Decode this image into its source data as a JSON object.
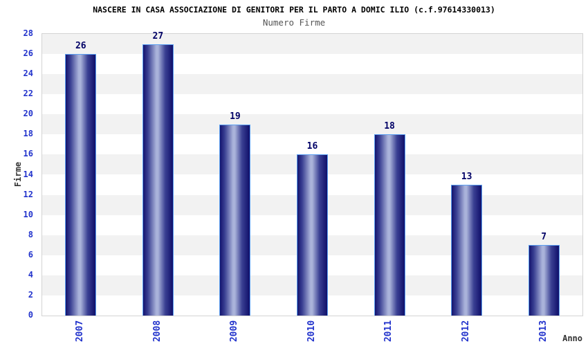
{
  "chart_data": {
    "type": "bar",
    "title": "NASCERE IN CASA ASSOCIAZIONE DI GENITORI PER IL PARTO A DOMIC ILIO (c.f.97614330013)",
    "subtitle": "Numero Firme",
    "xlabel": "Anno",
    "ylabel": "Firme",
    "categories": [
      "2007",
      "2008",
      "2009",
      "2010",
      "2011",
      "2012",
      "2013"
    ],
    "values": [
      26,
      27,
      19,
      16,
      18,
      13,
      7
    ],
    "ylim": [
      0,
      28
    ],
    "ytick_step": 2,
    "grid": "alternating-horizontal-bands",
    "legend": "none",
    "bar_value_labels_shown": true,
    "colors": {
      "title": "#000000",
      "subtitle": "#555555",
      "axis_label": "#333333",
      "tick_label": "#2233cc",
      "value_label": "#000066",
      "band_gray": "#f2f2f2",
      "band_white": "#ffffff",
      "plot_border": "#d3d3d3",
      "bar_border": "#5ba0f2",
      "bar_dark": "#14146e",
      "bar_mid": "#3a4093",
      "bar_light": "#aab3da",
      "background": "#ffffff"
    }
  }
}
